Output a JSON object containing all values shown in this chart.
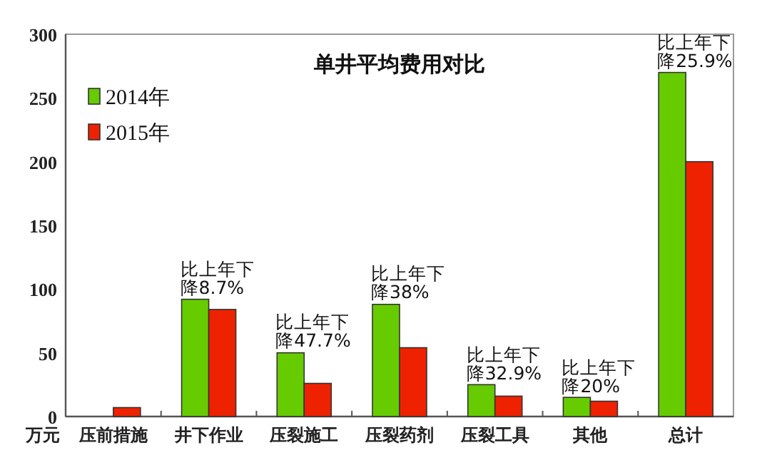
{
  "chart_data": {
    "type": "bar",
    "title": "单井平均费用对比",
    "ylabel": "万元",
    "categories": [
      "压前措施",
      "井下作业",
      "压裂施工",
      "压裂药剂",
      "压裂工具",
      "其他",
      "总计"
    ],
    "series": [
      {
        "name": "2014年",
        "color": "#66cc00",
        "values": [
          null,
          92,
          50,
          88,
          25,
          15,
          270
        ]
      },
      {
        "name": "2015年",
        "color": "#ee2200",
        "values": [
          7,
          84,
          26,
          54,
          16,
          12,
          200
        ]
      }
    ],
    "ylim": [
      0,
      300
    ],
    "yticks": [
      0,
      50,
      100,
      150,
      200,
      250,
      300
    ],
    "grid": false,
    "legend": "top left",
    "annotations": [
      {
        "text": "比上年下降8.7%",
        "x": "井下作业",
        "y": 92
      },
      {
        "text": "比上年下降47.7%",
        "x": "压裂施工",
        "y": 50
      },
      {
        "text": "比上年下降38%",
        "x": "压裂药剂",
        "y": 88
      },
      {
        "text": "比上年下降32.9%",
        "x": "压裂工具",
        "y": 25
      },
      {
        "text": "比上年下降20%",
        "x": "其他",
        "y": 15
      },
      {
        "text": "比上年下降25.9%",
        "x": "总计",
        "y": 270
      }
    ]
  }
}
